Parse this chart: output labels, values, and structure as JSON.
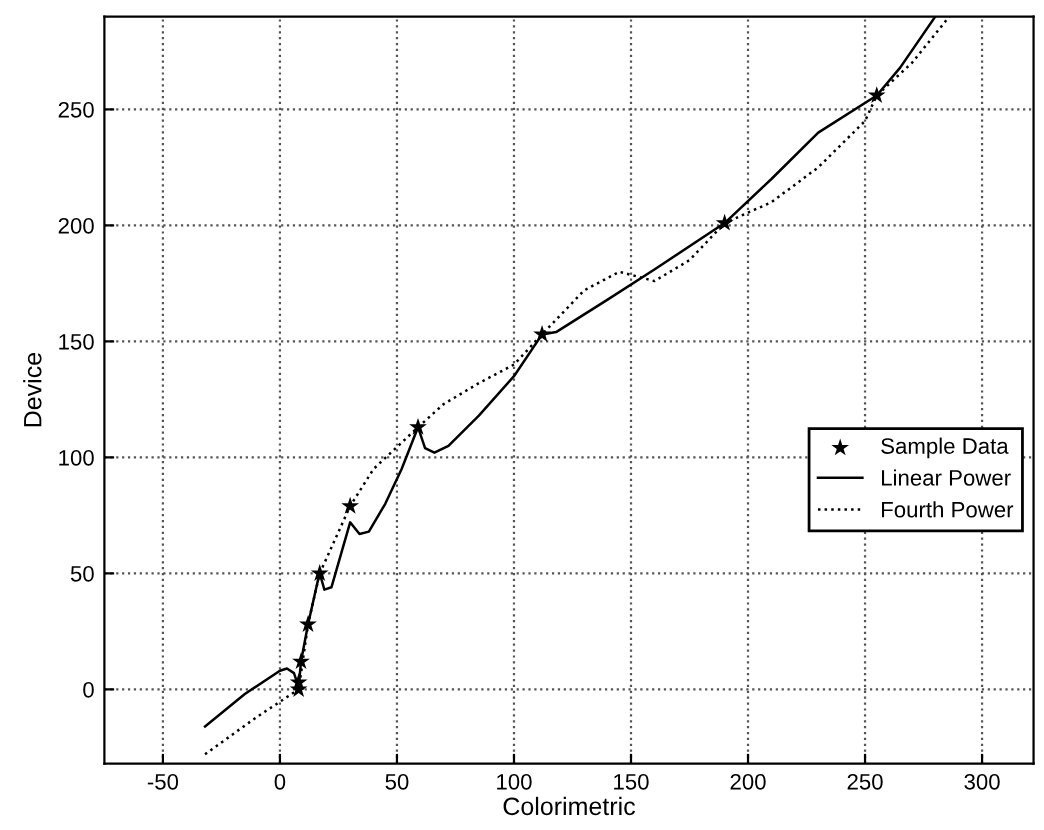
{
  "chart_data": {
    "type": "line",
    "xlabel": "Colorimetric",
    "ylabel": "Device",
    "xlim": [
      -75,
      322
    ],
    "ylim": [
      -32,
      290
    ],
    "xticks": [
      -50,
      0,
      50,
      100,
      150,
      200,
      250,
      300
    ],
    "yticks": [
      0,
      50,
      100,
      150,
      200,
      250
    ],
    "grid": true,
    "legend": "center right",
    "series": [
      {
        "name": "Sample Data",
        "type": "scatter",
        "marker": "star",
        "color": "#000000",
        "x": [
          8,
          8,
          9,
          12,
          17,
          30,
          59,
          112,
          190,
          255
        ],
        "values": [
          0,
          3,
          12,
          28,
          50,
          79,
          113,
          153,
          201,
          256
        ]
      },
      {
        "name": "Linear Power",
        "line_style": "solid",
        "color": "#000000",
        "x": [
          -32,
          -15,
          0,
          3,
          6,
          8,
          9,
          12,
          16,
          17,
          19,
          22,
          26,
          30,
          34,
          38,
          45,
          52,
          59,
          62,
          66,
          72,
          85,
          100,
          112,
          118,
          140,
          160,
          190,
          210,
          230,
          255,
          265,
          280
        ],
        "values": [
          -16,
          -2,
          8,
          9,
          7,
          1,
          12,
          28,
          46,
          50,
          43,
          44,
          58,
          72,
          67,
          68,
          80,
          95,
          113,
          104,
          102,
          105,
          118,
          135,
          153,
          154,
          168,
          181,
          201,
          220,
          240,
          256,
          268,
          290
        ]
      },
      {
        "name": "Fourth Power",
        "line_style": "dotted",
        "color": "#000000",
        "x": [
          -32,
          -10,
          8,
          12,
          17,
          30,
          40,
          59,
          70,
          85,
          100,
          112,
          130,
          145,
          160,
          175,
          190,
          210,
          230,
          250,
          255,
          270,
          286
        ],
        "values": [
          -28,
          -12,
          0,
          28,
          50,
          79,
          95,
          113,
          123,
          132,
          140,
          153,
          172,
          180,
          176,
          185,
          201,
          210,
          225,
          245,
          256,
          270,
          290
        ]
      }
    ]
  }
}
